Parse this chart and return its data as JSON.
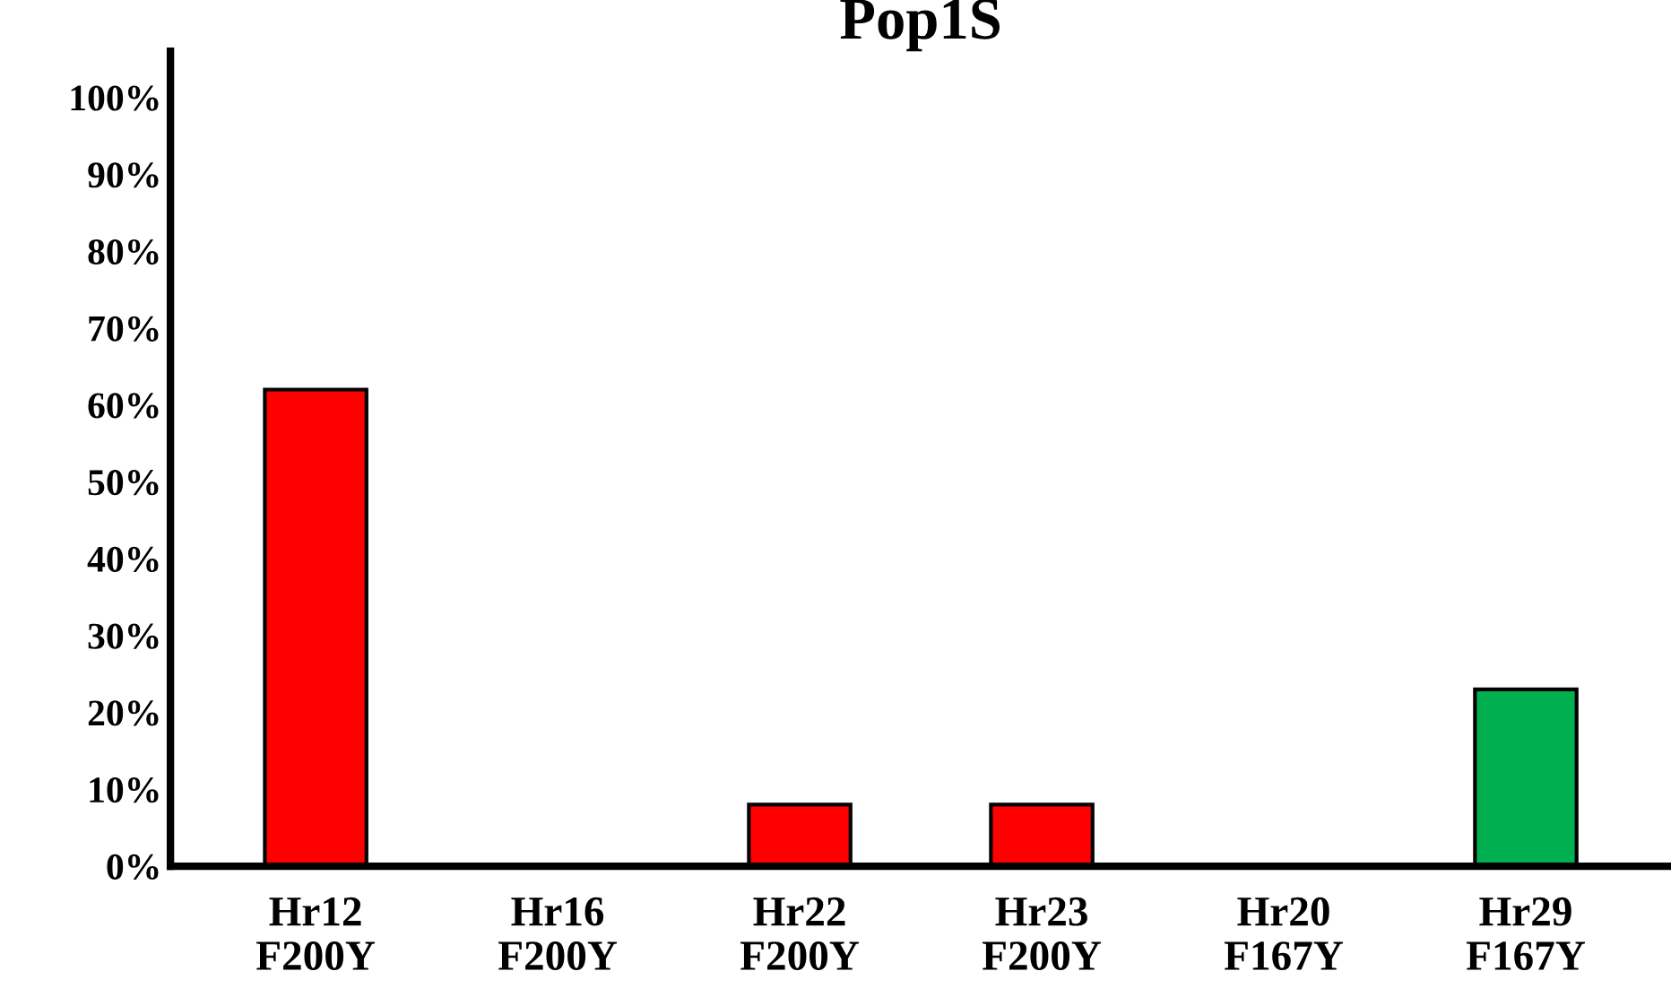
{
  "chart_data": {
    "type": "bar",
    "title": "Pop1S",
    "categories": [
      "Hr12\nF200Y",
      "Hr16\nF200Y",
      "Hr22\nF200Y",
      "Hr23\nF200Y",
      "Hr20\nF167Y",
      "Hr29\nF167Y"
    ],
    "values": [
      62,
      0,
      8,
      8,
      0,
      23
    ],
    "colors": [
      "#ff0000",
      "#ff0000",
      "#ff0000",
      "#ff0000",
      "#ff0000",
      "#00b050"
    ],
    "ylim": [
      0,
      106
    ],
    "yticks": [
      {
        "value": 0,
        "label": "0%"
      },
      {
        "value": 10,
        "label": "10%"
      },
      {
        "value": 20,
        "label": "20%"
      },
      {
        "value": 30,
        "label": "30%"
      },
      {
        "value": 40,
        "label": "40%"
      },
      {
        "value": 50,
        "label": "50%"
      },
      {
        "value": 60,
        "label": "60%"
      },
      {
        "value": 70,
        "label": "70%"
      },
      {
        "value": 80,
        "label": "80%"
      },
      {
        "value": 90,
        "label": "90%"
      },
      {
        "value": 100,
        "label": "100%"
      }
    ],
    "grid": false,
    "legend": false
  }
}
